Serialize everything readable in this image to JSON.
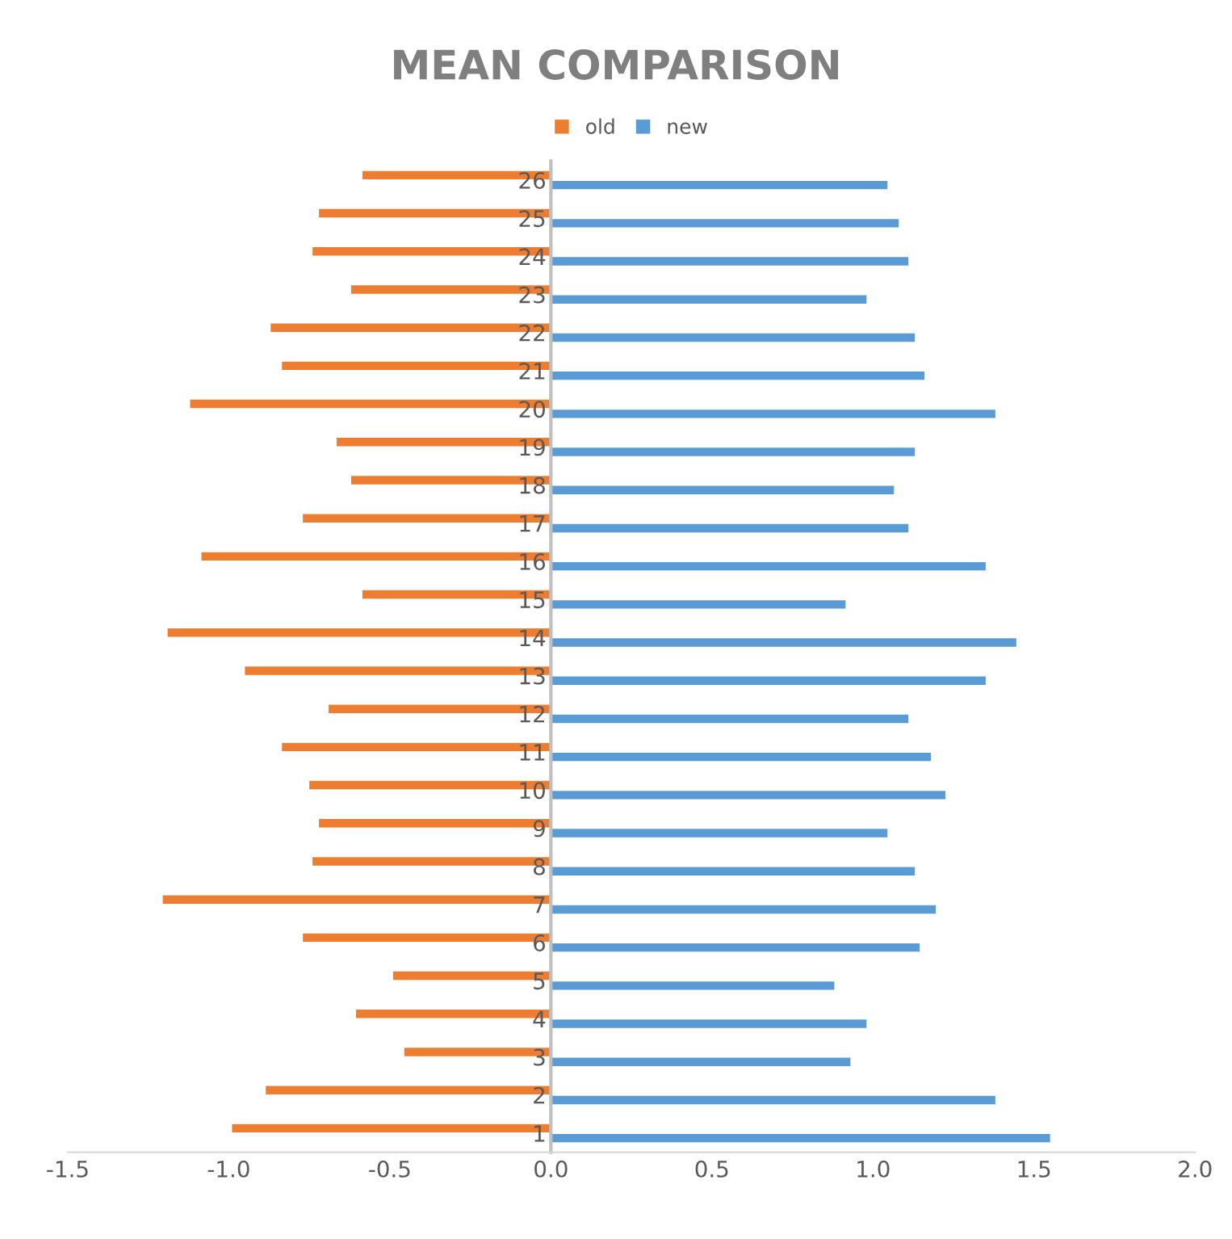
{
  "chart_data": {
    "type": "bar",
    "orientation": "horizontal",
    "title": "MEAN COMPARISON",
    "categories": [
      "26",
      "25",
      "24",
      "23",
      "22",
      "21",
      "20",
      "19",
      "18",
      "17",
      "16",
      "15",
      "14",
      "13",
      "12",
      "11",
      "10",
      "9",
      "8",
      "7",
      "6",
      "5",
      "4",
      "3",
      "2",
      "1"
    ],
    "series": [
      {
        "name": "old",
        "color": "#ed7d31",
        "values": [
          -0.585,
          -0.72,
          -0.74,
          -0.62,
          -0.87,
          -0.835,
          -1.12,
          -0.665,
          -0.62,
          -0.77,
          -1.085,
          -0.585,
          -1.19,
          -0.95,
          -0.69,
          -0.835,
          -0.75,
          -0.72,
          -0.74,
          -1.205,
          -0.77,
          -0.49,
          -0.605,
          -0.455,
          -0.885,
          -0.99
        ]
      },
      {
        "name": "new",
        "color": "#5b9bd5",
        "values": [
          1.045,
          1.08,
          1.11,
          0.98,
          1.13,
          1.16,
          1.38,
          1.13,
          1.065,
          1.11,
          1.35,
          0.915,
          1.445,
          1.35,
          1.11,
          1.18,
          1.225,
          1.045,
          1.13,
          1.195,
          1.145,
          0.88,
          0.98,
          0.93,
          1.38,
          1.55
        ]
      }
    ],
    "xlim": [
      -1.5,
      2.0
    ],
    "xticks": [
      {
        "value": -1.5,
        "label": "-1.5"
      },
      {
        "value": -1.0,
        "label": "-1.0"
      },
      {
        "value": -0.5,
        "label": "-0.5"
      },
      {
        "value": 0.0,
        "label": "0.0"
      },
      {
        "value": 0.5,
        "label": "0.5"
      },
      {
        "value": 1.0,
        "label": "1.0"
      },
      {
        "value": 1.5,
        "label": "1.5"
      },
      {
        "value": 2.0,
        "label": "2.0"
      }
    ],
    "legend": "top",
    "grid": false
  }
}
